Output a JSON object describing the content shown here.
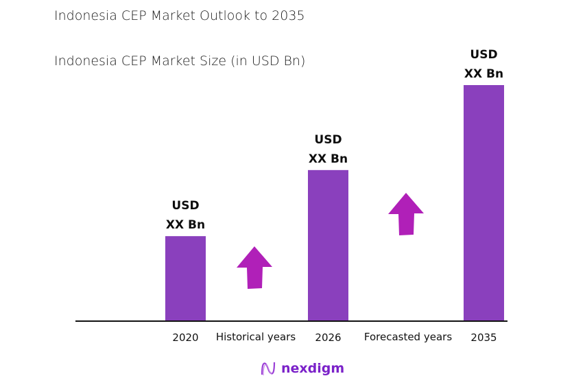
{
  "title": "Indonesia CEP Market Outlook to 2035",
  "subtitle": "Indonesia CEP Market Size (in USD Bn)",
  "chart_data": {
    "type": "bar",
    "title": "Indonesia CEP Market Outlook to 2035",
    "subtitle": "Indonesia CEP Market Size (in USD Bn)",
    "categories": [
      "2020",
      "2026",
      "2035"
    ],
    "values": [
      36,
      64,
      100
    ],
    "value_note": "relative bar heights; values not printed",
    "data_labels": [
      [
        "USD",
        "XX Bn"
      ],
      [
        "USD",
        "XX Bn"
      ],
      [
        "USD",
        "XX Bn"
      ]
    ],
    "period_labels": [
      "Historical years",
      "Forecasted years"
    ],
    "ylim": [
      0,
      100
    ],
    "grid": false,
    "colors": {
      "bar": "#8a40bd",
      "arrow": "#b020b8",
      "axis": "#111111"
    }
  },
  "logo": {
    "text": "nexdigm"
  }
}
